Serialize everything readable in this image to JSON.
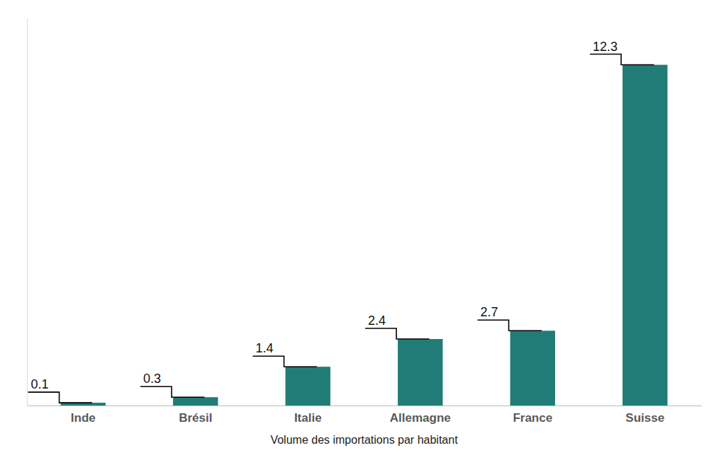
{
  "chart_data": {
    "type": "bar",
    "x_label": "Volume des importations par habitant",
    "categories": [
      "Inde",
      "Brésil",
      "Italie",
      "Allemagne",
      "France",
      "Suisse"
    ],
    "values": [
      0.1,
      0.3,
      1.4,
      2.4,
      2.7,
      12.3
    ],
    "color": "#217c77",
    "ylim": [
      0,
      14
    ],
    "yticks": [],
    "grid": false,
    "data_labels": true,
    "tick_labels": "x"
  }
}
